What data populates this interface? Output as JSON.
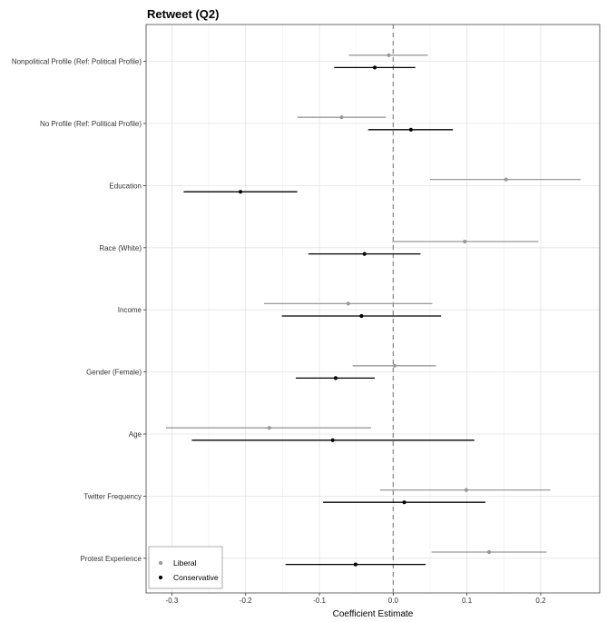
{
  "chart_data": {
    "type": "coefficient_plot",
    "title": "Retweet (Q2)",
    "xlabel": "Coefficient Estimate",
    "ylabel": "",
    "xlim": [
      -0.335,
      0.28
    ],
    "xticks": [
      -0.3,
      -0.2,
      -0.1,
      0.0,
      0.1,
      0.2
    ],
    "xtick_labels": [
      "-0.3",
      "-0.2",
      "-0.1",
      "0.0",
      "0.1",
      "0.2"
    ],
    "reference_line": 0,
    "grid": true,
    "legend_position": "bottom-left",
    "categories": [
      "Nonpolitical Profile (Ref: Political Profile)",
      "No Profile (Ref: Political Profile)",
      "Education",
      "Race (White)",
      "Income",
      "Gender (Female)",
      "Age",
      "Twitter Frequency",
      "Protest Experience"
    ],
    "series": [
      {
        "name": "Liberal",
        "color": "#999999",
        "estimates": [
          -0.006,
          -0.07,
          0.153,
          0.097,
          -0.061,
          0.002,
          -0.168,
          0.099,
          0.13
        ],
        "ci_low": [
          -0.06,
          -0.13,
          0.05,
          -0.001,
          -0.175,
          -0.055,
          -0.308,
          -0.018,
          0.052
        ],
        "ci_high": [
          0.047,
          -0.01,
          0.254,
          0.197,
          0.053,
          0.058,
          -0.03,
          0.213,
          0.208
        ]
      },
      {
        "name": "Conservative",
        "color": "#000000",
        "estimates": [
          -0.025,
          0.024,
          -0.207,
          -0.039,
          -0.043,
          -0.078,
          -0.082,
          0.015,
          -0.051
        ],
        "ci_low": [
          -0.08,
          -0.034,
          -0.284,
          -0.115,
          -0.151,
          -0.132,
          -0.273,
          -0.095,
          -0.146
        ],
        "ci_high": [
          0.03,
          0.081,
          -0.13,
          0.037,
          0.065,
          -0.025,
          0.11,
          0.125,
          0.044
        ]
      }
    ]
  }
}
